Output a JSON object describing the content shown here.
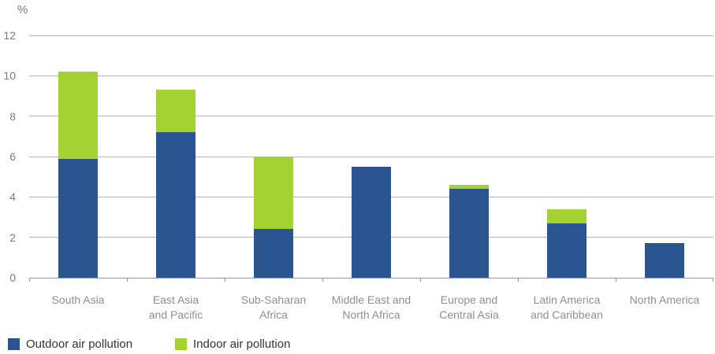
{
  "chart_data": {
    "type": "bar",
    "stacked": true,
    "title": "",
    "ylabel": "%",
    "xlabel": "",
    "ylim": [
      0,
      12
    ],
    "yticks": [
      0,
      2,
      4,
      6,
      8,
      10,
      12
    ],
    "grid": true,
    "legend_position": "bottom-left",
    "categories": [
      "South Asia",
      "East Asia and Pacific",
      "Sub-Saharan Africa",
      "Middle East and North Africa",
      "Europe and Central Asia",
      "Latin America and Caribbean",
      "North America"
    ],
    "category_label_lines": [
      [
        "South Asia"
      ],
      [
        "East Asia",
        "and Pacific"
      ],
      [
        "Sub-Saharan",
        "Africa"
      ],
      [
        "Middle East and",
        "North Africa"
      ],
      [
        "Europe and",
        "Central Asia"
      ],
      [
        "Latin America",
        "and Caribbean"
      ],
      [
        "North America"
      ]
    ],
    "series": [
      {
        "name": "Outdoor air pollution",
        "color": "#2B5591",
        "values": [
          5.9,
          7.2,
          2.4,
          5.5,
          4.4,
          2.7,
          1.7
        ]
      },
      {
        "name": "Indoor air pollution",
        "color": "#A4D233",
        "values": [
          4.3,
          2.1,
          3.6,
          0,
          0.2,
          0.7,
          0
        ]
      }
    ],
    "totals": [
      10.2,
      9.3,
      6.0,
      5.5,
      4.6,
      3.4,
      1.7
    ]
  },
  "legend": {
    "items": [
      {
        "label": "Outdoor air pollution",
        "color": "#2B5591"
      },
      {
        "label": "Indoor air pollution",
        "color": "#A4D233"
      }
    ]
  },
  "colors": {
    "outdoor_bar": "#2B5591",
    "indoor_bar": "#A4D233",
    "gridline": "#B5B5B5",
    "axis_line": "#979797",
    "y_tick_label": "#7B7B7B",
    "category_label": "#8F8F8F",
    "legend_text": "#333333",
    "background": "#FFFFFF"
  }
}
